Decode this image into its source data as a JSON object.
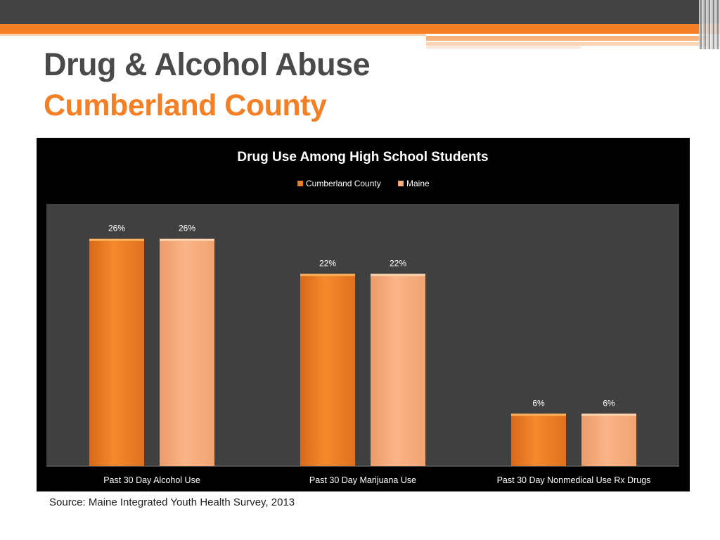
{
  "slide": {
    "title": "Drug & Alcohol Abuse",
    "subtitle": "Cumberland County",
    "source": "Source: Maine Integrated Youth Health Survey, 2013"
  },
  "colors": {
    "accent": "#f47f24",
    "cumberland": "#f08a2a",
    "maine": "#f9b07e",
    "plot_bg": "#404040"
  },
  "chart_data": {
    "type": "bar",
    "title": "Drug Use Among High School Students",
    "categories": [
      "Past 30 Day Alcohol Use",
      "Past 30 Day Marijuana Use",
      "Past 30 Day Nonmedical Use Rx Drugs"
    ],
    "series": [
      {
        "name": "Cumberland County",
        "values": [
          26,
          22,
          6
        ],
        "labels": [
          "26%",
          "22%",
          "6%"
        ]
      },
      {
        "name": "Maine",
        "values": [
          26,
          22,
          6
        ],
        "labels": [
          "26%",
          "22%",
          "6%"
        ]
      }
    ],
    "ylim": [
      0,
      30
    ],
    "legend": "top",
    "grid": false
  }
}
